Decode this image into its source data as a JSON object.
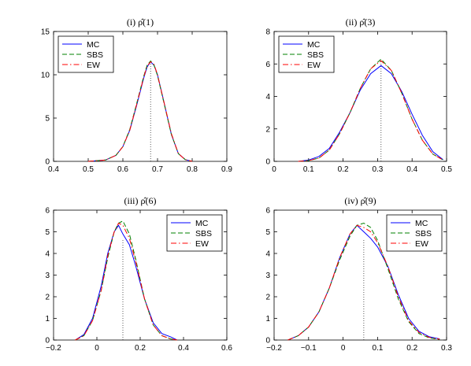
{
  "chart_data": [
    {
      "type": "line",
      "title": "(i) ρ̂(1)",
      "xlim": [
        0.4,
        0.9
      ],
      "ylim": [
        0,
        15
      ],
      "xticks": [
        "0.4",
        "0.5",
        "0.6",
        "0.7",
        "0.8",
        "0.9"
      ],
      "yticks": [
        "0",
        "5",
        "10",
        "15"
      ],
      "legend_position": "top-left",
      "reference_line_x": 0.68,
      "series": [
        {
          "name": "MC",
          "color": "#0000ff",
          "style": "solid",
          "x": [
            0.5,
            0.55,
            0.58,
            0.6,
            0.62,
            0.64,
            0.66,
            0.67,
            0.68,
            0.69,
            0.7,
            0.72,
            0.74,
            0.76,
            0.78,
            0.8
          ],
          "y": [
            0.0,
            0.15,
            0.7,
            1.7,
            3.6,
            6.5,
            9.6,
            10.9,
            11.5,
            11.1,
            10.0,
            6.6,
            3.1,
            0.9,
            0.2,
            0.0
          ]
        },
        {
          "name": "SBS",
          "color": "#008000",
          "style": "dashed",
          "x": [
            0.5,
            0.55,
            0.58,
            0.6,
            0.62,
            0.64,
            0.66,
            0.67,
            0.68,
            0.69,
            0.7,
            0.72,
            0.74,
            0.76,
            0.78,
            0.8
          ],
          "y": [
            0.0,
            0.15,
            0.7,
            1.7,
            3.7,
            6.7,
            9.8,
            11.1,
            11.6,
            11.1,
            9.9,
            6.5,
            3.1,
            0.9,
            0.2,
            0.0
          ]
        },
        {
          "name": "EW",
          "color": "#ff0000",
          "style": "dashdot",
          "x": [
            0.5,
            0.55,
            0.58,
            0.6,
            0.62,
            0.64,
            0.66,
            0.67,
            0.68,
            0.69,
            0.7,
            0.72,
            0.74,
            0.76,
            0.78,
            0.8
          ],
          "y": [
            0.0,
            0.15,
            0.7,
            1.7,
            3.6,
            6.6,
            9.7,
            11.0,
            11.5,
            11.2,
            10.0,
            6.6,
            3.2,
            0.9,
            0.2,
            0.0
          ]
        }
      ]
    },
    {
      "type": "line",
      "title": "(ii) ρ̂(3)",
      "xlim": [
        0,
        0.5
      ],
      "ylim": [
        0,
        8
      ],
      "xticks": [
        "0",
        "0.1",
        "0.2",
        "0.3",
        "0.4",
        "0.5"
      ],
      "yticks": [
        "0",
        "2",
        "4",
        "6",
        "8"
      ],
      "legend_position": "top-left",
      "reference_line_x": 0.31,
      "series": [
        {
          "name": "MC",
          "color": "#0000ff",
          "style": "solid",
          "x": [
            0.07,
            0.1,
            0.13,
            0.16,
            0.19,
            0.22,
            0.25,
            0.28,
            0.31,
            0.34,
            0.37,
            0.4,
            0.43,
            0.46,
            0.49
          ],
          "y": [
            0.0,
            0.08,
            0.3,
            0.8,
            1.8,
            3.0,
            4.4,
            5.4,
            5.9,
            5.4,
            4.3,
            2.9,
            1.6,
            0.6,
            0.1
          ]
        },
        {
          "name": "SBS",
          "color": "#008000",
          "style": "dashed",
          "x": [
            0.07,
            0.1,
            0.13,
            0.16,
            0.19,
            0.22,
            0.25,
            0.28,
            0.31,
            0.34,
            0.37,
            0.4,
            0.43,
            0.46,
            0.49
          ],
          "y": [
            0.0,
            0.05,
            0.2,
            0.7,
            1.7,
            3.0,
            4.5,
            5.7,
            6.3,
            5.6,
            4.2,
            2.6,
            1.3,
            0.45,
            0.08
          ]
        },
        {
          "name": "EW",
          "color": "#ff0000",
          "style": "dashdot",
          "x": [
            0.07,
            0.1,
            0.13,
            0.16,
            0.19,
            0.22,
            0.25,
            0.28,
            0.31,
            0.34,
            0.37,
            0.4,
            0.43,
            0.46,
            0.49
          ],
          "y": [
            0.0,
            0.05,
            0.2,
            0.7,
            1.7,
            3.0,
            4.5,
            5.7,
            6.2,
            5.6,
            4.2,
            2.6,
            1.3,
            0.45,
            0.08
          ]
        }
      ]
    },
    {
      "type": "line",
      "title": "(iii) ρ̂(6)",
      "xlim": [
        -0.2,
        0.6
      ],
      "ylim": [
        0,
        6
      ],
      "xticks": [
        "−0.2",
        "0",
        "0.2",
        "0.4",
        "0.6"
      ],
      "yticks": [
        "0",
        "1",
        "2",
        "3",
        "4",
        "5",
        "6"
      ],
      "legend_position": "top-right",
      "reference_line_x": 0.12,
      "series": [
        {
          "name": "MC",
          "color": "#0000ff",
          "style": "solid",
          "x": [
            -0.1,
            -0.06,
            -0.02,
            0.02,
            0.05,
            0.08,
            0.1,
            0.12,
            0.15,
            0.18,
            0.22,
            0.26,
            0.3,
            0.34,
            0.37
          ],
          "y": [
            0.0,
            0.25,
            1.0,
            2.5,
            4.0,
            5.0,
            5.3,
            4.9,
            4.4,
            3.4,
            1.9,
            0.8,
            0.3,
            0.15,
            0.0
          ]
        },
        {
          "name": "SBS",
          "color": "#008000",
          "style": "dashed",
          "x": [
            -0.1,
            -0.06,
            -0.02,
            0.02,
            0.05,
            0.08,
            0.1,
            0.12,
            0.15,
            0.18,
            0.22,
            0.26,
            0.3,
            0.34,
            0.37
          ],
          "y": [
            0.0,
            0.2,
            0.9,
            2.3,
            3.8,
            5.0,
            5.4,
            5.5,
            4.9,
            3.7,
            1.9,
            0.7,
            0.2,
            0.05,
            0.0
          ]
        },
        {
          "name": "EW",
          "color": "#ff0000",
          "style": "dashdot",
          "x": [
            -0.1,
            -0.06,
            -0.02,
            0.02,
            0.05,
            0.08,
            0.1,
            0.12,
            0.15,
            0.18,
            0.22,
            0.26,
            0.3,
            0.34,
            0.37
          ],
          "y": [
            0.0,
            0.2,
            0.9,
            2.3,
            3.9,
            5.0,
            5.4,
            5.3,
            4.7,
            3.6,
            1.9,
            0.7,
            0.2,
            0.05,
            0.0
          ]
        }
      ]
    },
    {
      "type": "line",
      "title": "(iv) ρ̂(9)",
      "xlim": [
        -0.2,
        0.3
      ],
      "ylim": [
        0,
        6
      ],
      "xticks": [
        "−0.2",
        "−0.1",
        "0",
        "0.1",
        "0.2",
        "0.3"
      ],
      "yticks": [
        "0",
        "1",
        "2",
        "3",
        "4",
        "5",
        "6"
      ],
      "legend_position": "top-right",
      "reference_line_x": 0.06,
      "series": [
        {
          "name": "MC",
          "color": "#0000ff",
          "style": "solid",
          "x": [
            -0.16,
            -0.13,
            -0.1,
            -0.07,
            -0.04,
            -0.01,
            0.02,
            0.04,
            0.06,
            0.08,
            0.1,
            0.13,
            0.16,
            0.19,
            0.22,
            0.25,
            0.28
          ],
          "y": [
            0.0,
            0.2,
            0.6,
            1.3,
            2.4,
            3.8,
            4.9,
            5.3,
            5.0,
            4.7,
            4.3,
            3.4,
            2.1,
            1.0,
            0.4,
            0.15,
            0.05
          ]
        },
        {
          "name": "SBS",
          "color": "#008000",
          "style": "dashed",
          "x": [
            -0.16,
            -0.13,
            -0.1,
            -0.07,
            -0.04,
            -0.01,
            0.02,
            0.04,
            0.06,
            0.08,
            0.1,
            0.13,
            0.16,
            0.19,
            0.22,
            0.25,
            0.28
          ],
          "y": [
            0.0,
            0.2,
            0.6,
            1.3,
            2.4,
            3.7,
            4.8,
            5.3,
            5.4,
            5.2,
            4.6,
            3.3,
            1.9,
            0.85,
            0.3,
            0.1,
            0.03
          ]
        },
        {
          "name": "EW",
          "color": "#ff0000",
          "style": "dashdot",
          "x": [
            -0.16,
            -0.13,
            -0.1,
            -0.07,
            -0.04,
            -0.01,
            0.02,
            0.04,
            0.06,
            0.08,
            0.1,
            0.13,
            0.16,
            0.19,
            0.22,
            0.25,
            0.28
          ],
          "y": [
            0.0,
            0.2,
            0.6,
            1.3,
            2.4,
            3.8,
            4.9,
            5.3,
            5.2,
            5.0,
            4.5,
            3.4,
            2.0,
            0.9,
            0.35,
            0.12,
            0.04
          ]
        }
      ]
    }
  ]
}
